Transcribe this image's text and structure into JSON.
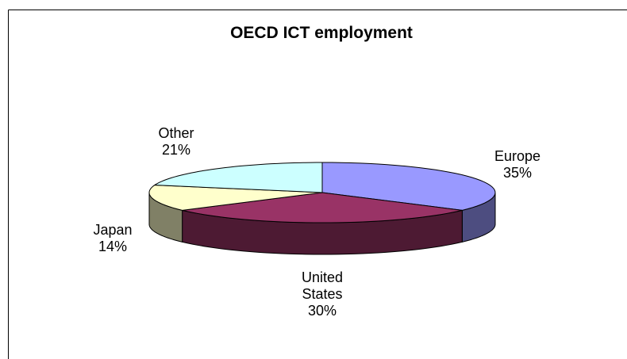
{
  "chart_data": {
    "type": "pie",
    "title": "OECD ICT employment",
    "categories": [
      "Europe",
      "United States",
      "Japan",
      "Other"
    ],
    "values": [
      35,
      30,
      14,
      21
    ],
    "value_labels": [
      "35%",
      "30%",
      "14%",
      "21%"
    ],
    "colors": [
      "#9999ff",
      "#993366",
      "#ffffcc",
      "#ccffff"
    ],
    "side_colors": [
      "#4d4d80",
      "#4d1a33",
      "#808066",
      "#668080"
    ]
  }
}
